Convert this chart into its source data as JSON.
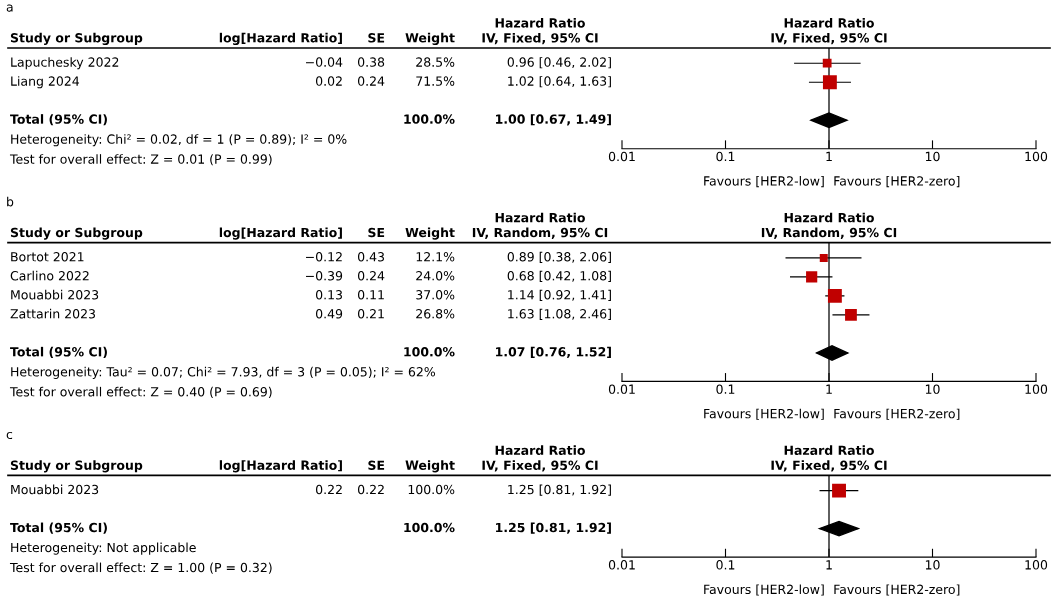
{
  "chart_data": [
    {
      "type": "scatter",
      "orientation": "horizontal",
      "log": "x",
      "tick_labels": "x",
      "categories": [
        "Lapuchesky 2022",
        "Liang 2024",
        null,
        "Total (95% CI)"
      ],
      "series": [
        {
          "color": "#c00000",
          "marker": "square",
          "values": [
            0.96,
            1.02,
            null,
            null
          ],
          "errors": [
            [
              0.46,
              2.02
            ],
            [
              0.64,
              1.63
            ],
            null,
            null
          ],
          "sizes": [
            0.4,
            1,
            null,
            null
          ]
        },
        {
          "color": "#000000",
          "marker": "diamond",
          "values": [
            null,
            null,
            null,
            1.0
          ],
          "errors": [
            null,
            null,
            null,
            [
              0.67,
              1.49
            ]
          ]
        }
      ],
      "xlim": [
        0.01,
        100
      ],
      "xticks": [
        0.01,
        0.1,
        1,
        10,
        100
      ],
      "ref_lines": [
        {
          "axis": "x",
          "value": 1,
          "color": "#000000"
        }
      ],
      "annotations": [
        "Study or Subgroup",
        "log[Hazard Ratio]",
        "SE",
        "Weight",
        "Hazard Ratio\nIV, Fixed, 95% CI",
        "Hazard Ratio\nIV, Fixed, 95% CI",
        "−0.04",
        "0.38",
        "28.5%",
        "0.96 [0.46, 2.02]",
        "0.02",
        "0.24",
        "71.5%",
        "1.02 [0.64, 1.63]",
        "100.0%",
        "1.00 [0.67, 1.49]",
        "Heterogeneity: Chi² = 0.02, df = 1 (P = 0.89); I² = 0%",
        "Test for overall effect: Z = 0.01 (P = 0.99)",
        "Favours [HER2-low]",
        "Favours [HER2-zero]",
        "a"
      ]
    },
    {
      "type": "scatter",
      "orientation": "horizontal",
      "log": "x",
      "tick_labels": "x",
      "categories": [
        "Bortot 2021",
        "Carlino 2022",
        "Mouabbi 2023",
        "Zattarin 2023",
        null,
        "Total (95% CI)"
      ],
      "series": [
        {
          "color": "#c00000",
          "marker": "square",
          "values": [
            0.89,
            0.68,
            1.14,
            1.63,
            null,
            null
          ],
          "errors": [
            [
              0.38,
              2.06
            ],
            [
              0.42,
              1.08
            ],
            [
              0.92,
              1.41
            ],
            [
              1.08,
              2.46
            ],
            null,
            null
          ],
          "sizes": [
            0.33,
            0.65,
            1,
            0.72,
            null,
            null
          ]
        },
        {
          "color": "#000000",
          "marker": "diamond",
          "values": [
            null,
            null,
            null,
            null,
            null,
            1.07
          ],
          "errors": [
            null,
            null,
            null,
            null,
            null,
            [
              0.76,
              1.52
            ]
          ]
        }
      ],
      "xlim": [
        0.01,
        100
      ],
      "xticks": [
        0.01,
        0.1,
        1,
        10,
        100
      ],
      "ref_lines": [
        {
          "axis": "x",
          "value": 1,
          "color": "#000000"
        }
      ],
      "annotations": [
        "Study or Subgroup",
        "log[Hazard Ratio]",
        "SE",
        "Weight",
        "Hazard Ratio\nIV, Random, 95% CI",
        "Hazard Ratio\nIV, Random, 95% CI",
        "−0.12",
        "0.43",
        "12.1%",
        "0.89 [0.38, 2.06]",
        "−0.39",
        "0.24",
        "24.0%",
        "0.68 [0.42, 1.08]",
        "0.13",
        "0.11",
        "37.0%",
        "1.14 [0.92, 1.41]",
        "0.49",
        "0.21",
        "26.8%",
        "1.63 [1.08, 2.46]",
        "100.0%",
        "1.07 [0.76, 1.52]",
        "Heterogeneity: Tau² = 0.07; Chi² = 7.93, df = 3 (P = 0.05); I² = 62%",
        "Test for overall effect: Z = 0.40 (P = 0.69)",
        "Favours [HER2-low]",
        "Favours [HER2-zero]",
        "b"
      ]
    },
    {
      "type": "scatter",
      "orientation": "horizontal",
      "log": "x",
      "tick_labels": "x",
      "categories": [
        "Mouabbi 2023",
        null,
        "Total (95% CI)"
      ],
      "series": [
        {
          "color": "#c00000",
          "marker": "square",
          "values": [
            1.25,
            null,
            null
          ],
          "errors": [
            [
              0.81,
              1.92
            ],
            null,
            null
          ],
          "sizes": [
            1,
            null,
            null
          ]
        },
        {
          "color": "#000000",
          "marker": "diamond",
          "values": [
            null,
            null,
            1.25
          ],
          "errors": [
            null,
            null,
            [
              0.81,
              1.92
            ]
          ]
        }
      ],
      "xlim": [
        0.01,
        100
      ],
      "xticks": [
        0.01,
        0.1,
        1,
        10,
        100
      ],
      "ref_lines": [
        {
          "axis": "x",
          "value": 1,
          "color": "#000000"
        }
      ],
      "annotations": [
        "Study or Subgroup",
        "log[Hazard Ratio]",
        "SE",
        "Weight",
        "Hazard Ratio\nIV, Fixed, 95% CI",
        "Hazard Ratio\nIV, Fixed, 95% CI",
        "0.22",
        "0.22",
        "100.0%",
        "1.25 [0.81, 1.92]",
        "100.0%",
        "1.25 [0.81, 1.92]",
        "Heterogeneity: Not applicable",
        "Test for overall effect: Z = 1.00 (P = 0.32)",
        "Favours [HER2-low]",
        "Favours [HER2-zero]",
        "c"
      ]
    }
  ]
}
